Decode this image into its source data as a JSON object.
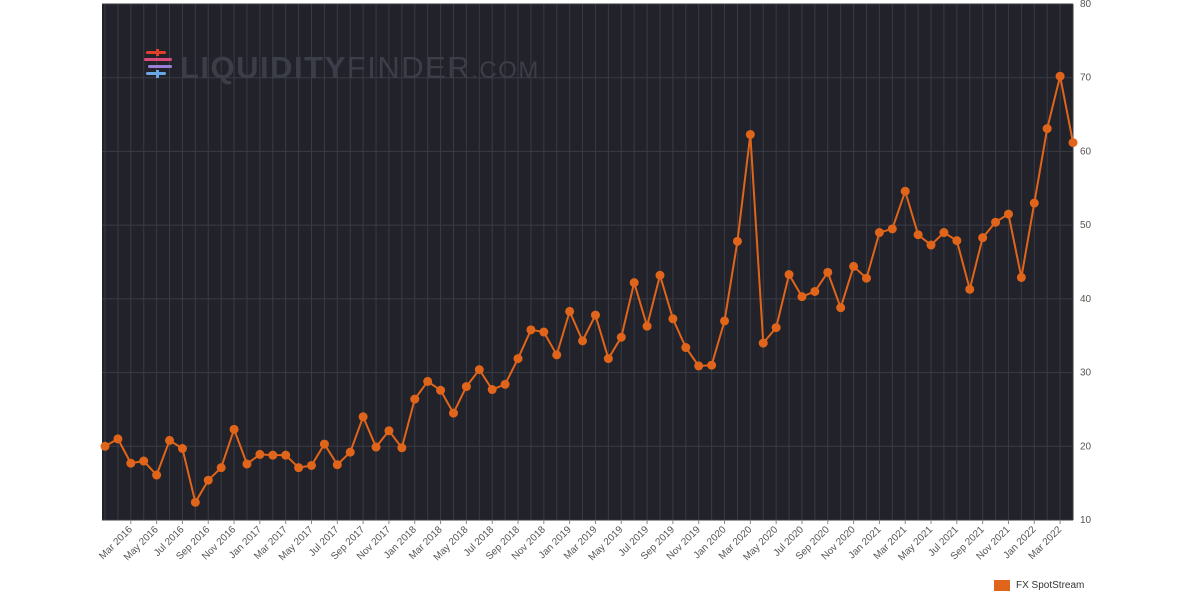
{
  "watermark": {
    "brand_a": "LIQUIDITY",
    "brand_b": "FINDER",
    "brand_c": ".COM"
  },
  "legend": {
    "label": "FX SpotStream"
  },
  "colors": {
    "plot_bg": "#22222a",
    "grid": "#3a3b44",
    "series": "#e0651b",
    "watermark_text": "#3b3d48"
  },
  "chart_data": {
    "type": "line",
    "title": "",
    "xlabel": "",
    "ylabel": "",
    "ylim": [
      10,
      80
    ],
    "y_ticks": [
      10,
      20,
      30,
      40,
      50,
      60,
      70,
      80
    ],
    "y_axis_side": "right",
    "grid": true,
    "legend_position": "bottom-right",
    "x_tick_labels": [
      "Mar 2016",
      "May 2016",
      "Jul 2016",
      "Sep 2016",
      "Nov 2016",
      "Jan 2017",
      "Mar 2017",
      "May 2017",
      "Jul 2017",
      "Sep 2017",
      "Nov 2017",
      "Jan 2018",
      "Mar 2018",
      "May 2018",
      "Jul 2018",
      "Sep 2018",
      "Nov 2018",
      "Jan 2019",
      "Mar 2019",
      "May 2019",
      "Jul 2019",
      "Sep 2019",
      "Nov 2019",
      "Jan 2020",
      "Mar 2020",
      "May 2020",
      "Jul 2020",
      "Sep 2020",
      "Nov 2020",
      "Jan 2021",
      "Mar 2021",
      "May 2021",
      "Jul 2021",
      "Sep 2021",
      "Nov 2021",
      "Jan 2022",
      "Mar 2022"
    ],
    "series": [
      {
        "name": "FX SpotStream",
        "x": [
          "2016-01",
          "2016-02",
          "2016-03",
          "2016-04",
          "2016-05",
          "2016-06",
          "2016-07",
          "2016-08",
          "2016-09",
          "2016-10",
          "2016-11",
          "2016-12",
          "2017-01",
          "2017-02",
          "2017-03",
          "2017-04",
          "2017-05",
          "2017-06",
          "2017-07",
          "2017-08",
          "2017-09",
          "2017-10",
          "2017-11",
          "2017-12",
          "2018-01",
          "2018-02",
          "2018-03",
          "2018-04",
          "2018-05",
          "2018-06",
          "2018-07",
          "2018-08",
          "2018-09",
          "2018-10",
          "2018-11",
          "2018-12",
          "2019-01",
          "2019-02",
          "2019-03",
          "2019-04",
          "2019-05",
          "2019-06",
          "2019-07",
          "2019-08",
          "2019-09",
          "2019-10",
          "2019-11",
          "2019-12",
          "2020-01",
          "2020-02",
          "2020-03",
          "2020-04",
          "2020-05",
          "2020-06",
          "2020-07",
          "2020-08",
          "2020-09",
          "2020-10",
          "2020-11",
          "2020-12",
          "2021-01",
          "2021-02",
          "2021-03",
          "2021-04",
          "2021-05",
          "2021-06",
          "2021-07",
          "2021-08",
          "2021-09",
          "2021-10",
          "2021-11",
          "2021-12",
          "2022-01",
          "2022-02",
          "2022-03",
          "2022-04"
        ],
        "values": [
          20.0,
          21.0,
          17.7,
          18.0,
          16.1,
          20.8,
          19.7,
          12.4,
          15.4,
          17.1,
          22.3,
          17.6,
          18.9,
          18.8,
          18.8,
          17.1,
          17.4,
          20.3,
          17.5,
          19.2,
          24.0,
          19.9,
          22.1,
          19.8,
          26.4,
          28.8,
          27.6,
          24.5,
          28.1,
          30.4,
          27.7,
          28.4,
          31.9,
          35.8,
          35.5,
          32.4,
          38.3,
          34.3,
          37.8,
          31.9,
          34.8,
          42.2,
          36.3,
          43.2,
          37.3,
          33.4,
          30.9,
          31.0,
          37.0,
          47.8,
          62.3,
          34.0,
          36.1,
          43.3,
          40.3,
          41.0,
          43.6,
          38.8,
          44.4,
          42.8,
          49.0,
          49.5,
          54.6,
          48.7,
          47.3,
          49.0,
          47.9,
          41.3,
          48.3,
          50.4,
          51.5,
          42.9,
          53.0,
          63.1,
          70.2,
          61.2
        ]
      }
    ]
  }
}
